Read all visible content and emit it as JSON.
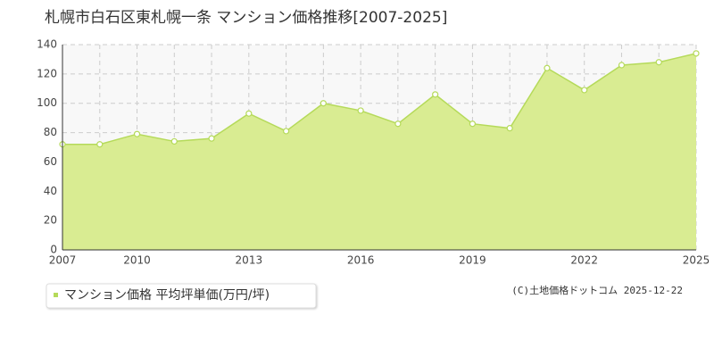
{
  "chart_data": {
    "type": "area",
    "title": "札幌市白石区東札幌一条 マンション価格推移[2007-2025]",
    "categories": [
      "2007",
      null,
      "2010",
      null,
      null,
      "2013",
      null,
      null,
      "2016",
      null,
      null,
      "2019",
      null,
      null,
      "2022",
      null,
      null,
      "2025"
    ],
    "series": [
      {
        "name": "マンション価格 平均坪単価(万円/坪)",
        "color": "#b5da5a",
        "values": [
          72,
          72,
          79,
          74,
          76,
          93,
          81,
          100,
          95,
          86,
          106,
          86,
          83,
          124,
          109,
          126,
          128,
          134
        ]
      }
    ],
    "ylim": [
      0,
      140
    ],
    "yticks": [
      0,
      20,
      40,
      60,
      80,
      100,
      120,
      140
    ],
    "grid": true,
    "source": "(C)土地価格ドットコム 2025-12-22"
  }
}
